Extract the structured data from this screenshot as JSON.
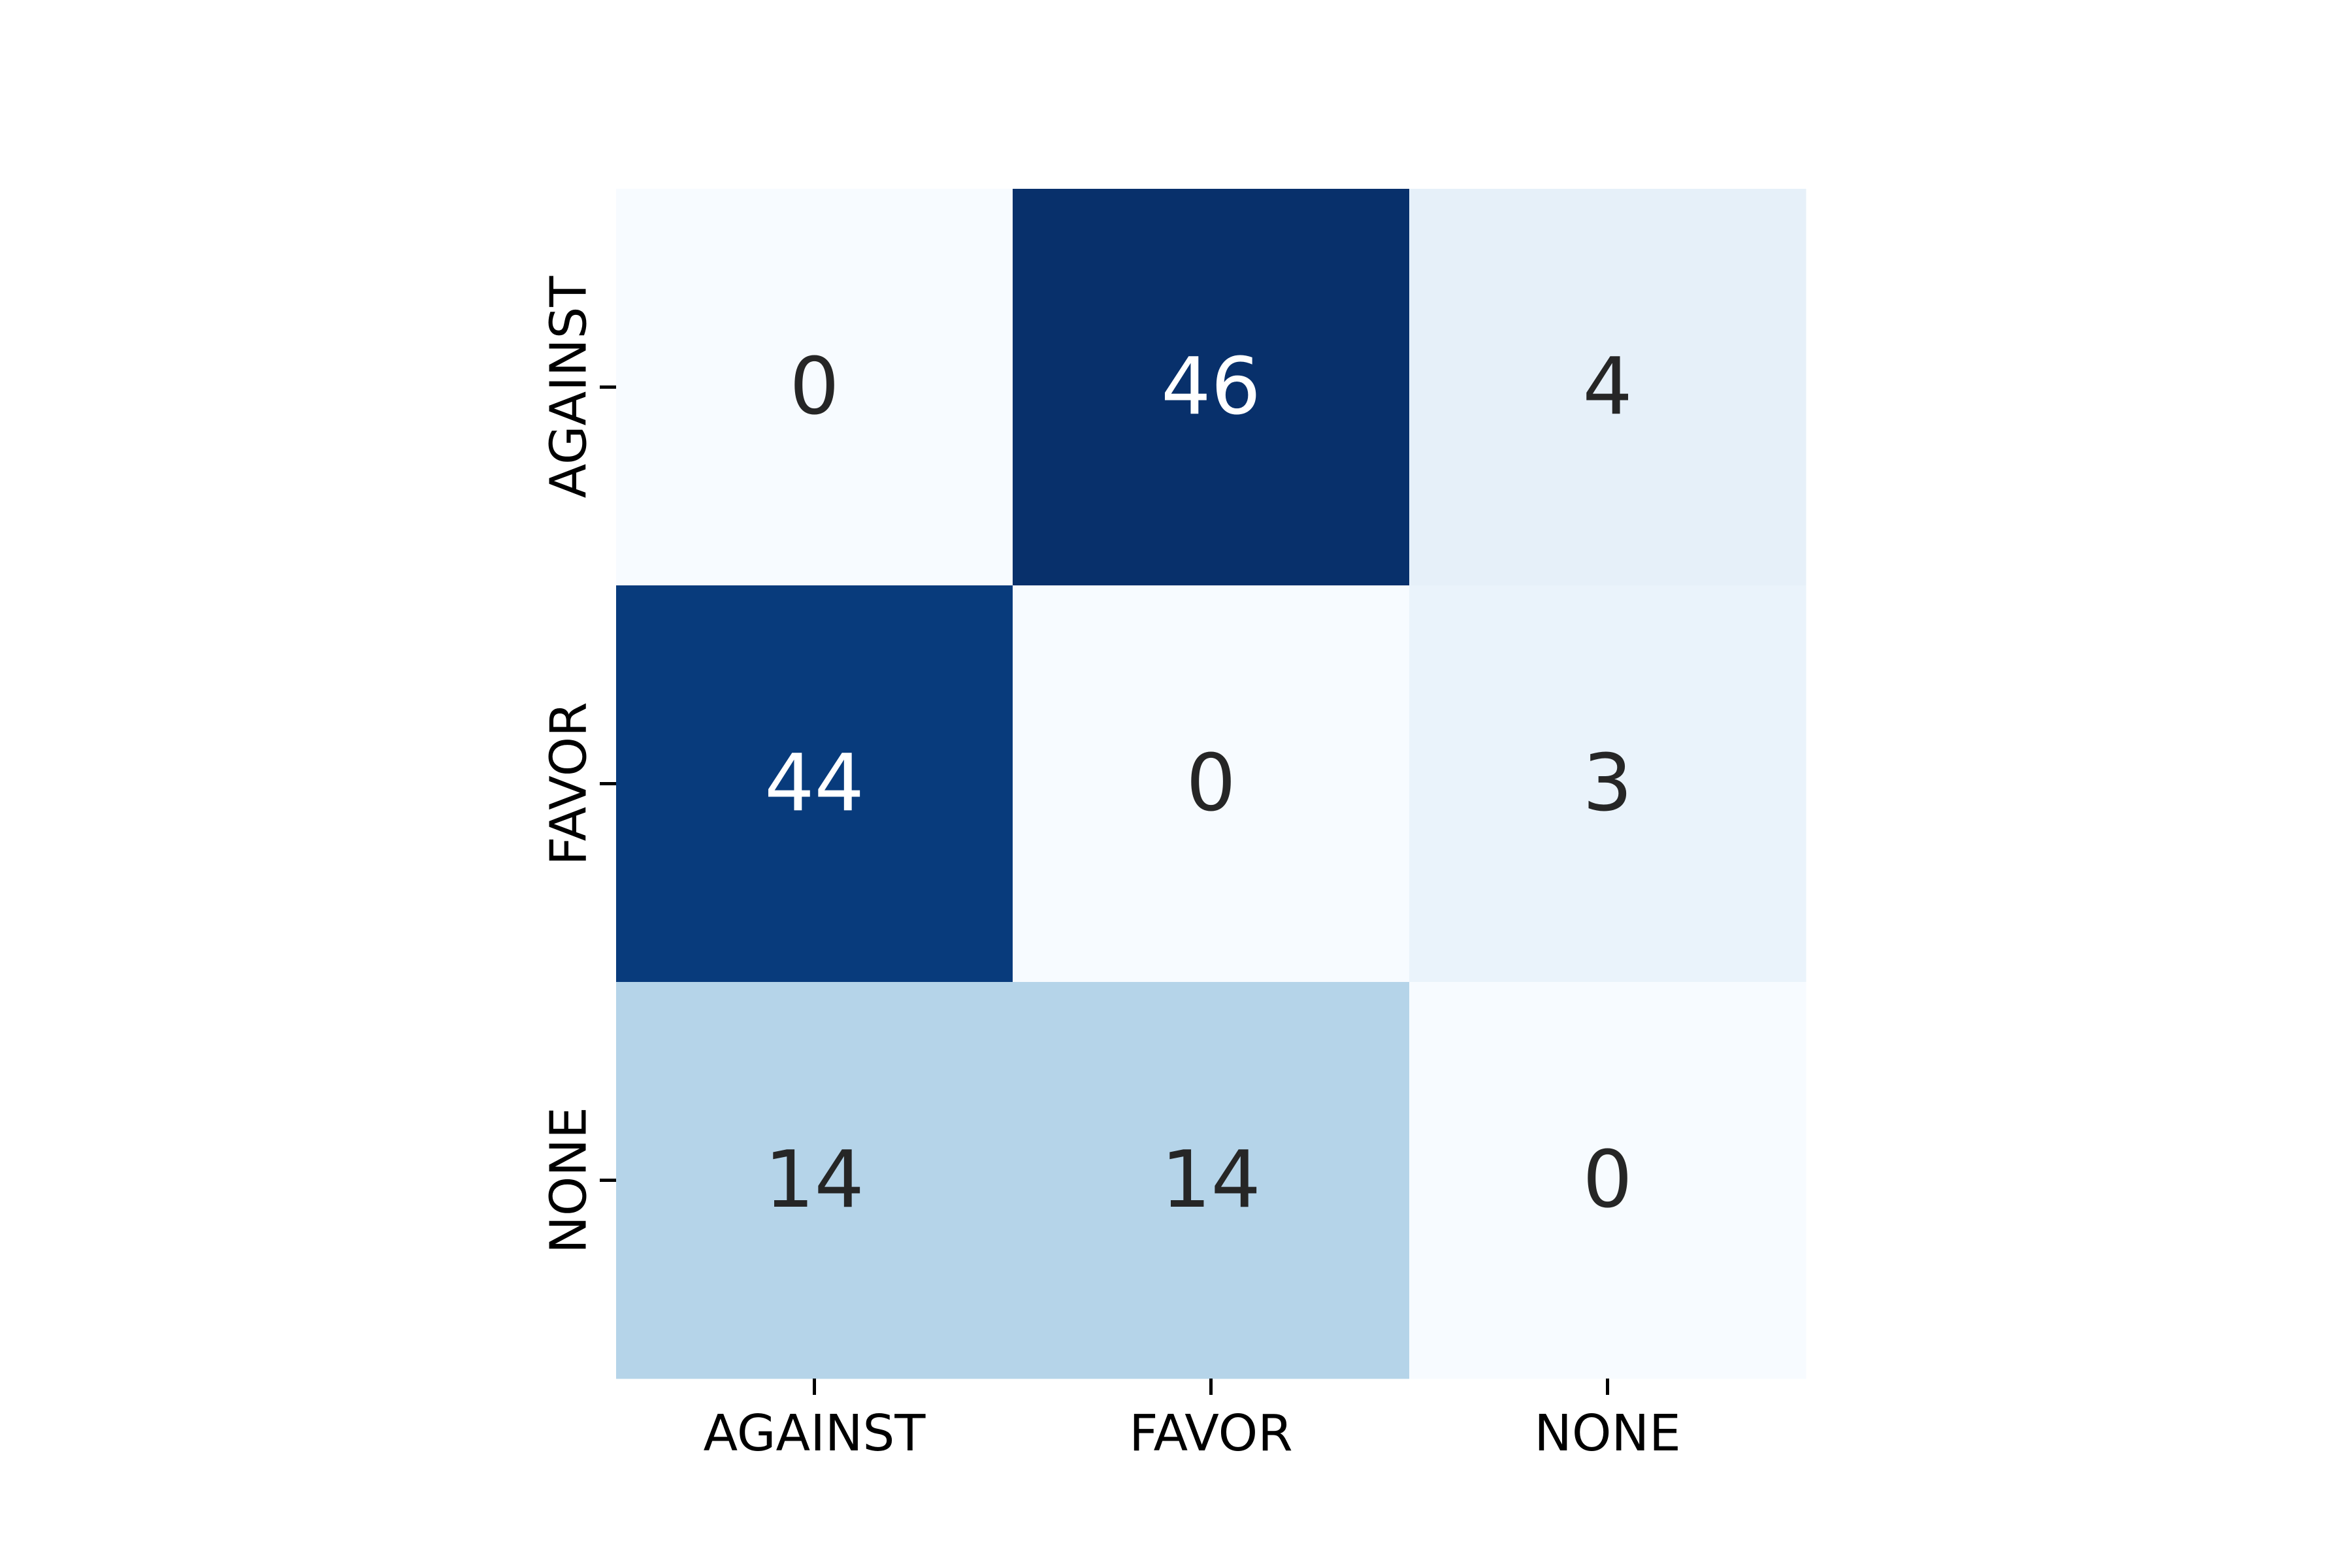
{
  "chart_data": {
    "type": "heatmap",
    "title": "",
    "xlabel": "",
    "ylabel": "",
    "x_categories": [
      "AGAINST",
      "FAVOR",
      "NONE"
    ],
    "y_categories": [
      "AGAINST",
      "FAVOR",
      "NONE"
    ],
    "values": [
      [
        0,
        46,
        4
      ],
      [
        44,
        0,
        3
      ],
      [
        14,
        14,
        0
      ]
    ],
    "value_range": [
      0,
      46
    ],
    "colormap": "Blues",
    "colorbar": false,
    "grid": false,
    "dark_text_color": "#262626",
    "light_text_color": "#ffffff"
  }
}
